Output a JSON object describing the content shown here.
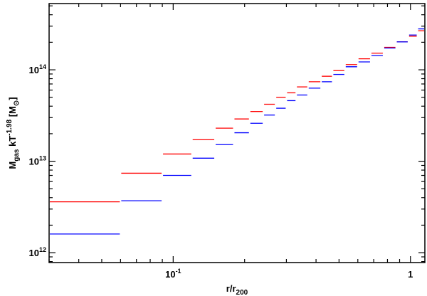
{
  "chart_data": {
    "type": "line",
    "title": "",
    "xscale": "log",
    "yscale": "log",
    "xlim": [
      0.03,
      1.15
    ],
    "ylim": [
      780000000000.0,
      530000000000000.0
    ],
    "grid": false,
    "legend": "none",
    "x_ticks": [
      {
        "value": 0.1,
        "base": "10",
        "exp": "-1"
      },
      {
        "value": 1,
        "label": "1"
      }
    ],
    "y_ticks": [
      {
        "value": 1000000000000.0,
        "base": "10",
        "exp": "12"
      },
      {
        "value": 10000000000000.0,
        "base": "10",
        "exp": "13"
      },
      {
        "value": 100000000000000.0,
        "base": "10",
        "exp": "14"
      }
    ],
    "xlabel": {
      "main": "r/r",
      "sub": "200"
    },
    "ylabel": {
      "main": "M",
      "sub": "gas",
      "mid": " kT",
      "sup": "-1.98",
      "unit_open": " [M",
      "unit_close": "]"
    },
    "series": [
      {
        "color": "#ff0000",
        "bins": [
          [
            0.03,
            0.06,
            3600000000000.0
          ],
          [
            0.06,
            0.09,
            7400000000000.0
          ],
          [
            0.09,
            0.12,
            12000000000000.0
          ],
          [
            0.12,
            0.15,
            17200000000000.0
          ],
          [
            0.15,
            0.18,
            23000000000000.0
          ],
          [
            0.18,
            0.21,
            29000000000000.0
          ],
          [
            0.21,
            0.24,
            35000000000000.0
          ],
          [
            0.24,
            0.27,
            42000000000000.0
          ],
          [
            0.27,
            0.3,
            50000000000000.0
          ],
          [
            0.3,
            0.33,
            56000000000000.0
          ],
          [
            0.33,
            0.37,
            65000000000000.0
          ],
          [
            0.37,
            0.42,
            74000000000000.0
          ],
          [
            0.42,
            0.47,
            85000000000000.0
          ],
          [
            0.47,
            0.53,
            98000000000000.0
          ],
          [
            0.53,
            0.6,
            114000000000000.0
          ],
          [
            0.6,
            0.68,
            132000000000000.0
          ],
          [
            0.68,
            0.77,
            152000000000000.0
          ],
          [
            0.77,
            0.87,
            176000000000000.0
          ],
          [
            0.87,
            0.98,
            202000000000000.0
          ],
          [
            0.98,
            1.07,
            233000000000000.0
          ],
          [
            1.07,
            1.15,
            267000000000000.0
          ]
        ]
      },
      {
        "color": "#0000ff",
        "bins": [
          [
            0.03,
            0.06,
            1600000000000.0
          ],
          [
            0.06,
            0.09,
            3700000000000.0
          ],
          [
            0.09,
            0.12,
            7000000000000.0
          ],
          [
            0.12,
            0.15,
            10800000000000.0
          ],
          [
            0.15,
            0.18,
            15200000000000.0
          ],
          [
            0.18,
            0.21,
            20500000000000.0
          ],
          [
            0.21,
            0.24,
            26000000000000.0
          ],
          [
            0.24,
            0.27,
            32000000000000.0
          ],
          [
            0.27,
            0.3,
            38000000000000.0
          ],
          [
            0.3,
            0.33,
            46000000000000.0
          ],
          [
            0.33,
            0.37,
            53000000000000.0
          ],
          [
            0.37,
            0.42,
            63000000000000.0
          ],
          [
            0.42,
            0.47,
            74000000000000.0
          ],
          [
            0.47,
            0.53,
            89000000000000.0
          ],
          [
            0.53,
            0.6,
            108000000000000.0
          ],
          [
            0.6,
            0.68,
            122000000000000.0
          ],
          [
            0.68,
            0.77,
            143000000000000.0
          ],
          [
            0.77,
            0.87,
            173000000000000.0
          ],
          [
            0.87,
            0.98,
            202000000000000.0
          ],
          [
            0.98,
            1.07,
            240000000000000.0
          ],
          [
            1.07,
            1.15,
            280000000000000.0
          ]
        ]
      }
    ]
  }
}
